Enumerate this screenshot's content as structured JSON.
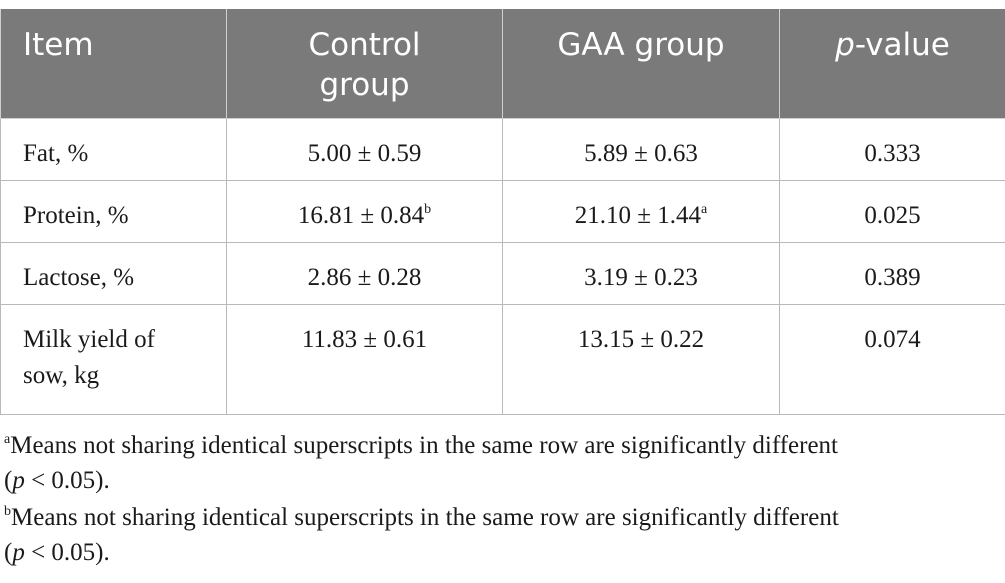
{
  "table": {
    "headers": [
      {
        "text": "Item",
        "italic_prefix": ""
      },
      {
        "text": "Control group",
        "italic_prefix": ""
      },
      {
        "text": "GAA group",
        "italic_prefix": ""
      },
      {
        "text": "-value",
        "italic_prefix": "p"
      }
    ],
    "header_bg": "#7a7a7a",
    "rows": [
      {
        "item": "Fat, %",
        "control": "5.00 ± 0.59",
        "control_sup": "",
        "gaa": "5.89 ± 0.63",
        "gaa_sup": "",
        "p": "0.333"
      },
      {
        "item": "Protein, %",
        "control": "16.81 ± 0.84",
        "control_sup": "b",
        "gaa": "21.10 ± 1.44",
        "gaa_sup": "a",
        "p": "0.025"
      },
      {
        "item": "Lactose, %",
        "control": "2.86 ± 0.28",
        "control_sup": "",
        "gaa": "3.19 ± 0.23",
        "gaa_sup": "",
        "p": "0.389"
      },
      {
        "item": "Milk yield of sow, kg",
        "control": "11.83 ± 0.61",
        "control_sup": "",
        "gaa": "13.15 ± 0.22",
        "gaa_sup": "",
        "p": "0.074"
      }
    ]
  },
  "footnotes": [
    {
      "marker": "a",
      "text": "Means not sharing identical superscripts in the same row are significantly different",
      "p_italic": "p",
      "p_rest": " < 0.05)."
    },
    {
      "marker": "b",
      "text": "Means not sharing identical superscripts in the same row are significantly different",
      "p_italic": "p",
      "p_rest": " < 0.05)."
    }
  ]
}
